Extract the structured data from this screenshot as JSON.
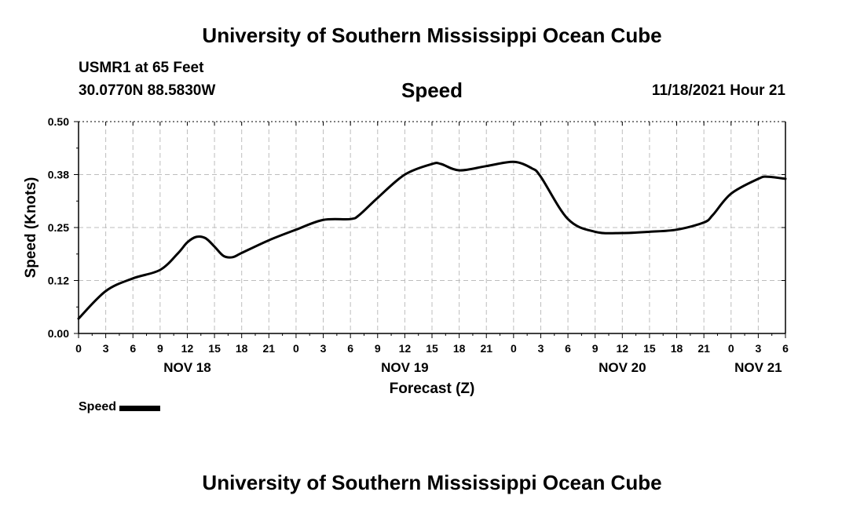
{
  "header": {
    "title": "University of Southern Mississippi Ocean Cube",
    "station": "USMR1 at 65 Feet",
    "coords": "30.0770N  88.5830W",
    "datetime": "11/18/2021 Hour 21"
  },
  "footer": {
    "title": "University of Southern Mississippi Ocean Cube"
  },
  "legend": {
    "label": "Speed"
  },
  "chart_data": {
    "type": "line",
    "title": "Speed",
    "xlabel": "Forecast (Z)",
    "ylabel": "Speed (Knots)",
    "ylim": [
      0,
      0.5
    ],
    "yticks": [
      "0.00",
      "0.12",
      "0.25",
      "0.38",
      "0.50"
    ],
    "xlim": [
      0,
      78
    ],
    "xticks": [
      "0",
      "3",
      "6",
      "9",
      "12",
      "15",
      "18",
      "21",
      "0",
      "3",
      "6",
      "9",
      "12",
      "15",
      "18",
      "21",
      "0",
      "3",
      "6",
      "9",
      "12",
      "15",
      "18",
      "21",
      "0",
      "3",
      "6"
    ],
    "date_labels": [
      {
        "label": "NOV 18",
        "hour": 12
      },
      {
        "label": "NOV 19",
        "hour": 36
      },
      {
        "label": "NOV 20",
        "hour": 60
      },
      {
        "label": "NOV 21",
        "hour": 75
      }
    ],
    "grid": true,
    "series": [
      {
        "name": "Speed",
        "x": [
          0,
          3,
          6,
          9,
          11,
          12,
          13,
          14,
          15,
          16,
          17,
          18,
          21,
          24,
          27,
          30,
          31,
          33,
          36,
          39,
          40,
          42,
          45,
          48,
          50,
          51,
          54,
          57,
          60,
          63,
          66,
          69,
          70,
          72,
          75,
          76,
          78
        ],
        "values": [
          0.035,
          0.1,
          0.13,
          0.15,
          0.19,
          0.215,
          0.228,
          0.225,
          0.205,
          0.183,
          0.18,
          0.19,
          0.22,
          0.245,
          0.268,
          0.27,
          0.28,
          0.32,
          0.375,
          0.4,
          0.4,
          0.385,
          0.395,
          0.405,
          0.39,
          0.37,
          0.27,
          0.24,
          0.237,
          0.24,
          0.245,
          0.262,
          0.28,
          0.33,
          0.365,
          0.37,
          0.365
        ]
      }
    ]
  }
}
